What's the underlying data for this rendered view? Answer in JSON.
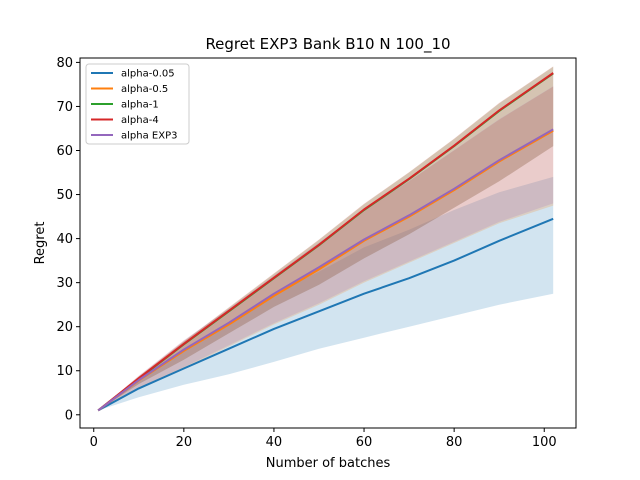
{
  "chart_data": {
    "type": "line",
    "title": "Regret EXP3 Bank B10 N 100_10",
    "xlabel": "Number of batches",
    "ylabel": "Regret",
    "xlim": [
      -3.05,
      107.05
    ],
    "ylim": [
      -3.0,
      81.0
    ],
    "xticks": [
      0,
      20,
      40,
      60,
      80,
      100
    ],
    "yticks": [
      0,
      10,
      20,
      30,
      40,
      50,
      60,
      70,
      80
    ],
    "grid": false,
    "legend_position": "top-left",
    "x": [
      1,
      10,
      20,
      30,
      40,
      50,
      60,
      70,
      80,
      90,
      102
    ],
    "series": [
      {
        "name": "alpha-0.05",
        "color": "#1f77b4",
        "values": [
          1.0,
          6.0,
          10.5,
          15.0,
          19.5,
          23.5,
          27.5,
          31.0,
          35.0,
          39.5,
          44.5
        ],
        "lower": [
          1.0,
          4.0,
          6.8,
          9.2,
          12.0,
          15.0,
          17.5,
          20.0,
          22.5,
          25.0,
          27.5
        ],
        "upper": [
          1.0,
          7.5,
          14.5,
          21.0,
          27.5,
          32.5,
          38.0,
          42.0,
          46.5,
          50.5,
          54.0
        ]
      },
      {
        "name": "alpha-0.5",
        "color": "#ff7f0e",
        "values": [
          1.0,
          7.8,
          14.5,
          20.5,
          27.0,
          33.0,
          39.5,
          45.0,
          51.0,
          57.5,
          64.5
        ],
        "lower": [
          1.0,
          6.0,
          10.5,
          15.5,
          20.5,
          25.0,
          30.0,
          34.5,
          39.0,
          43.5,
          47.5
        ],
        "upper": [
          1.0,
          8.8,
          16.8,
          24.0,
          31.5,
          39.0,
          46.5,
          53.0,
          60.0,
          67.0,
          74.5
        ]
      },
      {
        "name": "alpha-1",
        "color": "#2ca02c",
        "values": [
          1.0,
          8.2,
          16.0,
          23.5,
          31.0,
          38.5,
          46.5,
          53.5,
          61.0,
          69.0,
          77.5
        ],
        "lower": [
          1.0,
          7.0,
          12.5,
          18.5,
          24.5,
          29.5,
          35.5,
          41.0,
          47.0,
          53.0,
          61.0
        ],
        "upper": [
          1.0,
          8.6,
          16.6,
          24.3,
          32.0,
          39.7,
          47.8,
          55.0,
          62.6,
          70.7,
          79.0
        ]
      },
      {
        "name": "alpha-4",
        "color": "#d62728",
        "values": [
          1.0,
          8.3,
          16.1,
          23.6,
          31.1,
          38.6,
          46.6,
          53.6,
          61.1,
          69.1,
          77.6
        ],
        "lower": [
          1.0,
          7.0,
          12.5,
          18.5,
          24.5,
          29.5,
          35.5,
          41.0,
          47.0,
          53.0,
          61.0
        ],
        "upper": [
          1.0,
          8.7,
          16.7,
          24.4,
          32.1,
          39.8,
          47.9,
          55.1,
          62.7,
          70.8,
          79.1
        ]
      },
      {
        "name": "alpha EXP3",
        "color": "#9467bd",
        "values": [
          1.0,
          7.9,
          14.8,
          20.9,
          27.5,
          33.5,
          39.8,
          45.3,
          51.3,
          57.8,
          64.8
        ],
        "lower": [
          1.0,
          6.2,
          10.8,
          15.8,
          20.8,
          25.3,
          30.3,
          34.8,
          39.3,
          43.8,
          48.0
        ],
        "upper": [
          1.0,
          8.9,
          16.9,
          24.1,
          31.6,
          39.1,
          46.6,
          53.1,
          60.1,
          67.1,
          74.6
        ]
      }
    ]
  }
}
